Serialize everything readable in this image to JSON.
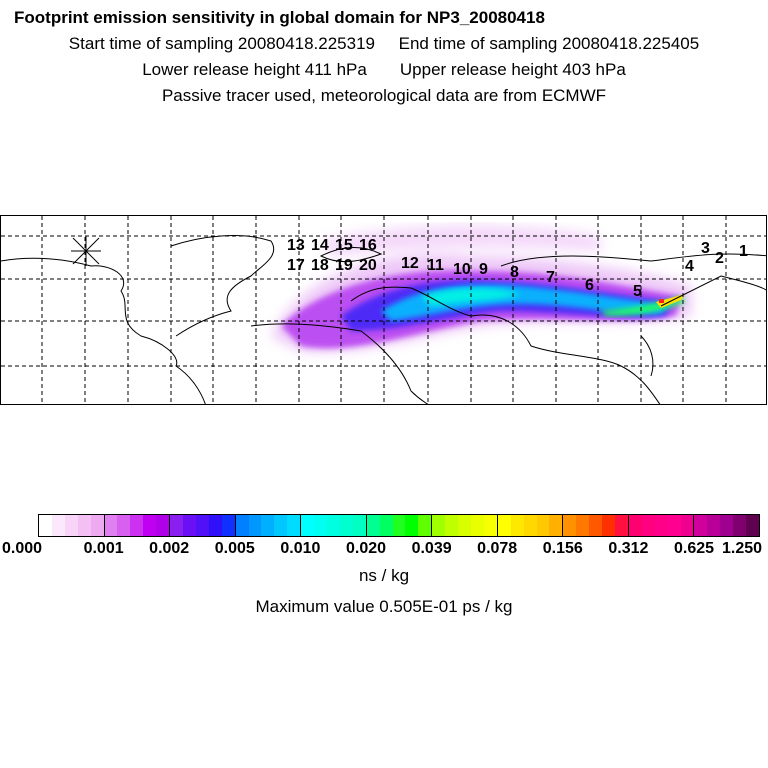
{
  "header": {
    "title": "Footprint emission sensitivity in global domain for NP3_20080418",
    "start_time": "Start time of sampling 20080418.225319",
    "end_time": "End time of sampling 20080418.225405",
    "lower_release": "Lower release height  411 hPa",
    "upper_release": "Upper release height  403 hPa",
    "note": "Passive tracer used, meteorological data are from ECMWF"
  },
  "map": {
    "trajectory_labels": [
      "1",
      "2",
      "3",
      "4",
      "5",
      "6",
      "7",
      "8",
      "9",
      "10",
      "11",
      "12",
      "13",
      "14",
      "15",
      "16",
      "17",
      "18",
      "19",
      "20"
    ]
  },
  "colorbar": {
    "ticks": [
      "0.000",
      "0.001",
      "0.002",
      "0.005",
      "0.010",
      "0.020",
      "0.039",
      "0.078",
      "0.156",
      "0.312",
      "0.625",
      "1.250"
    ],
    "segments": [
      [
        "#ffffff",
        "#fce8fc",
        "#f8d4f8",
        "#f4c0f4",
        "#eeaaf0"
      ],
      [
        "#e080f0",
        "#d860f0",
        "#cc30f0",
        "#c000f0",
        "#b000e8"
      ],
      [
        "#8a20f0",
        "#6a10f4",
        "#5010f8",
        "#3010f8",
        "#1030ff"
      ],
      [
        "#0080ff",
        "#0098ff",
        "#00b0ff",
        "#00c8ff",
        "#00dcff"
      ],
      [
        "#00ffff",
        "#00fff0",
        "#00ffe0",
        "#00ffd0",
        "#00ffc0"
      ],
      [
        "#00ff90",
        "#00ff60",
        "#20ff20",
        "#00ff00",
        "#60ff00"
      ],
      [
        "#a0ff00",
        "#c0ff00",
        "#d8ff00",
        "#eaff00",
        "#f8ff00"
      ],
      [
        "#ffff00",
        "#ffe800",
        "#ffd800",
        "#ffc800",
        "#ffb000"
      ],
      [
        "#ff9000",
        "#ff7800",
        "#ff5800",
        "#ff3000",
        "#ff1040"
      ],
      [
        "#ff0070",
        "#ff0080",
        "#ff0088",
        "#ff0090",
        "#f00090"
      ],
      [
        "#d0009c",
        "#b80098",
        "#a00090",
        "#800070",
        "#600050"
      ]
    ],
    "unit": "ns / kg",
    "max_value": "Maximum value  0.505E-01 ps / kg"
  }
}
